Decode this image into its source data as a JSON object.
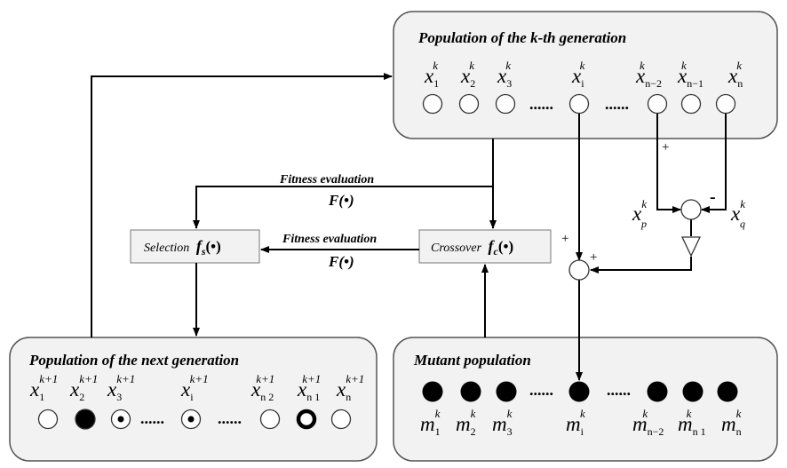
{
  "population_k": {
    "title": "Population of the k-th generation",
    "var": "x",
    "superscript": "k",
    "members": [
      {
        "sub": "1"
      },
      {
        "sub": "2"
      },
      {
        "sub": "3"
      },
      {
        "sub": "i"
      },
      {
        "sub": "n−2"
      },
      {
        "sub": "n−1"
      },
      {
        "sub": "n"
      }
    ],
    "ellipsis": "......"
  },
  "fitness_top": {
    "label": "Fitness evaluation",
    "func": "F(•)"
  },
  "fitness_mid": {
    "label": "Fitness evaluation",
    "func": "F(•)"
  },
  "selection": {
    "name": "Selection",
    "func": "f",
    "sub": "s",
    "arg": "(•)"
  },
  "crossover": {
    "name": "Crossover",
    "func": "f",
    "sub": "c",
    "arg": "(•)"
  },
  "difference": {
    "xp": {
      "var": "x",
      "sup": "k",
      "sub": "p"
    },
    "xq": {
      "var": "x",
      "sup": "k",
      "sub": "q"
    },
    "plus": "+",
    "minus": "-"
  },
  "mutation_sum": {
    "plus_left": "+",
    "plus_right": "+"
  },
  "next_population": {
    "title": "Population of the next generation",
    "var": "x",
    "superscript": "k+1",
    "members": [
      {
        "sub": "1",
        "style": "empty"
      },
      {
        "sub": "2",
        "style": "filled"
      },
      {
        "sub": "3",
        "style": "dot"
      },
      {
        "sub": "i",
        "style": "dot"
      },
      {
        "sub": "n 2",
        "style": "empty"
      },
      {
        "sub": "n 1",
        "style": "thick"
      },
      {
        "sub": "n",
        "style": "empty"
      }
    ],
    "ellipsis": "......"
  },
  "mutant_population": {
    "title": "Mutant population",
    "var": "m",
    "superscript": "k",
    "members": [
      {
        "sub": "1"
      },
      {
        "sub": "2"
      },
      {
        "sub": "3"
      },
      {
        "sub": "i"
      },
      {
        "sub": "n−2"
      },
      {
        "sub": "n 1"
      },
      {
        "sub": "n"
      }
    ],
    "ellipsis": "......"
  },
  "colors": {
    "box_fill": "#f2f2f2",
    "box_stroke": "#555555",
    "line": "#000000",
    "node_filled": "#000000"
  }
}
